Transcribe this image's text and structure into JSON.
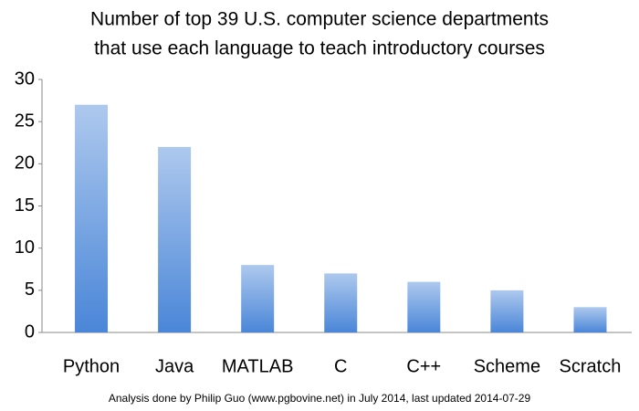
{
  "chart_data": {
    "type": "bar",
    "title": [
      "Number of top 39 U.S. computer science departments",
      "that use each language to teach introductory courses"
    ],
    "categories": [
      "Python",
      "Java",
      "MATLAB",
      "C",
      "C++",
      "Scheme",
      "Scratch"
    ],
    "values": [
      27,
      22,
      8,
      7,
      6,
      5,
      3
    ],
    "color": "#4a86d8",
    "ylim": [
      0,
      30
    ],
    "yticks": [
      0,
      5,
      10,
      15,
      20,
      25,
      30
    ],
    "grid": false,
    "note": "Analysis done by Philip Guo (www.pgbovine.net) in July 2014, last updated 2014-07-29"
  }
}
